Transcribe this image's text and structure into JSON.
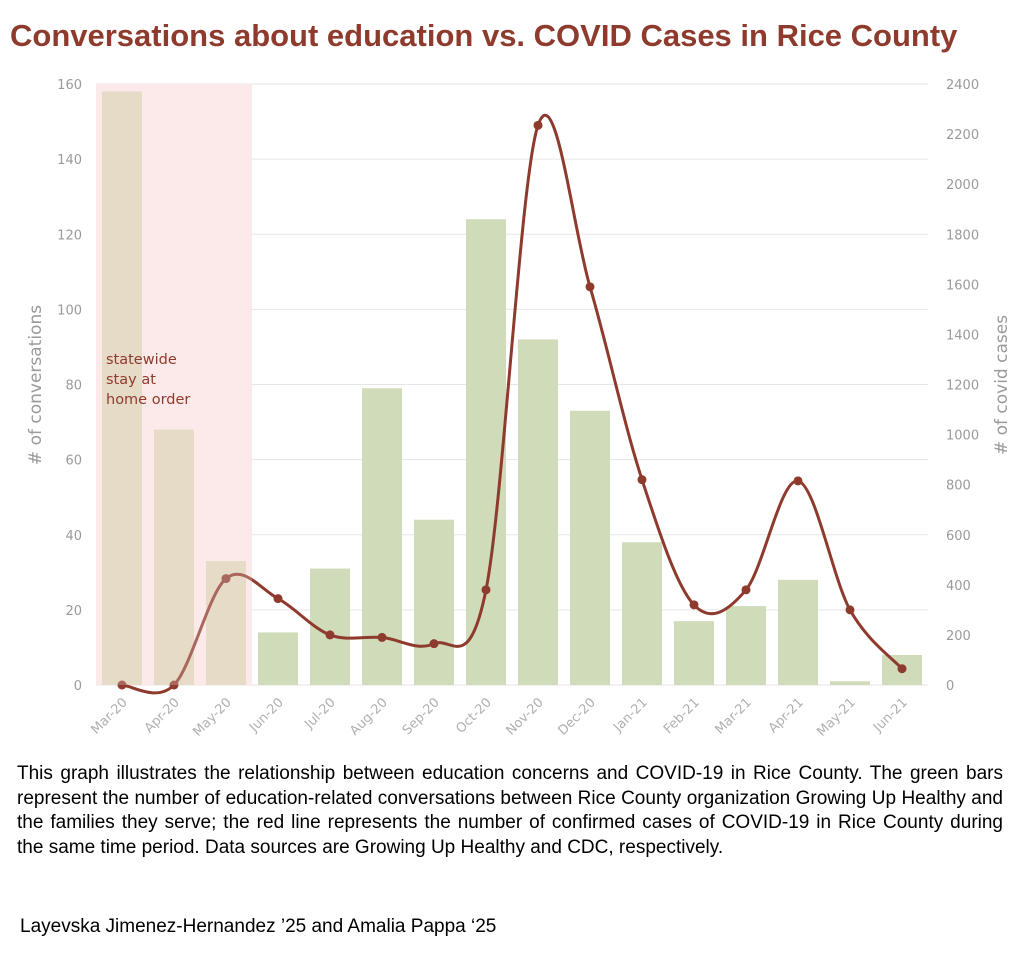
{
  "chart_data": {
    "type": "bar",
    "title": "Conversations about education vs. COVID Cases in Rice County",
    "categories": [
      "Mar-20",
      "Apr-20",
      "May-20",
      "Jun-20",
      "Jul-20",
      "Aug-20",
      "Sep-20",
      "Oct-20",
      "Nov-20",
      "Dec-20",
      "Jan-21",
      "Feb-21",
      "Mar-21",
      "Apr-21",
      "May-21",
      "Jun-21"
    ],
    "series": [
      {
        "name": "# of conversations",
        "type": "bar",
        "axis": "left",
        "color": "#cfdbb9",
        "values": [
          158,
          68,
          33,
          14,
          31,
          79,
          44,
          124,
          92,
          73,
          38,
          17,
          21,
          28,
          1,
          8
        ]
      },
      {
        "name": "# of covid cases",
        "type": "line",
        "axis": "right",
        "color": "#8e3b2e",
        "values": [
          0,
          0,
          425,
          345,
          200,
          190,
          165,
          380,
          2235,
          1590,
          820,
          320,
          380,
          815,
          300,
          65
        ]
      }
    ],
    "ylabel": "# of conversations",
    "y2label": "# of covid cases",
    "ylim": [
      0,
      160
    ],
    "y2lim": [
      0,
      2400
    ],
    "yticks": [
      "0",
      "20",
      "40",
      "60",
      "80",
      "100",
      "120",
      "140",
      "160"
    ],
    "y2ticks": [
      "0",
      "200",
      "400",
      "600",
      "800",
      "1000",
      "1200",
      "1400",
      "1600",
      "1800",
      "2000",
      "2200",
      "2400"
    ],
    "grid": true,
    "shaded_region": {
      "from": "Mar-20",
      "to": "May-20",
      "color": "#fdeaea"
    },
    "annotation": [
      "statewide",
      "stay at",
      "home order"
    ]
  },
  "caption": "This graph illustrates the relationship between education concerns and COVID-19 in Rice County. The green bars represent the number of education-related conversations between Rice County organization Growing Up Healthy and the families they serve; the red line represents the number of confirmed cases of COVID-19 in Rice County during the same time period. Data sources are Growing Up Healthy and CDC, respectively.",
  "credit": "Layevska Jimenez-Hernandez ’25 and Amalia Pappa ‘25"
}
